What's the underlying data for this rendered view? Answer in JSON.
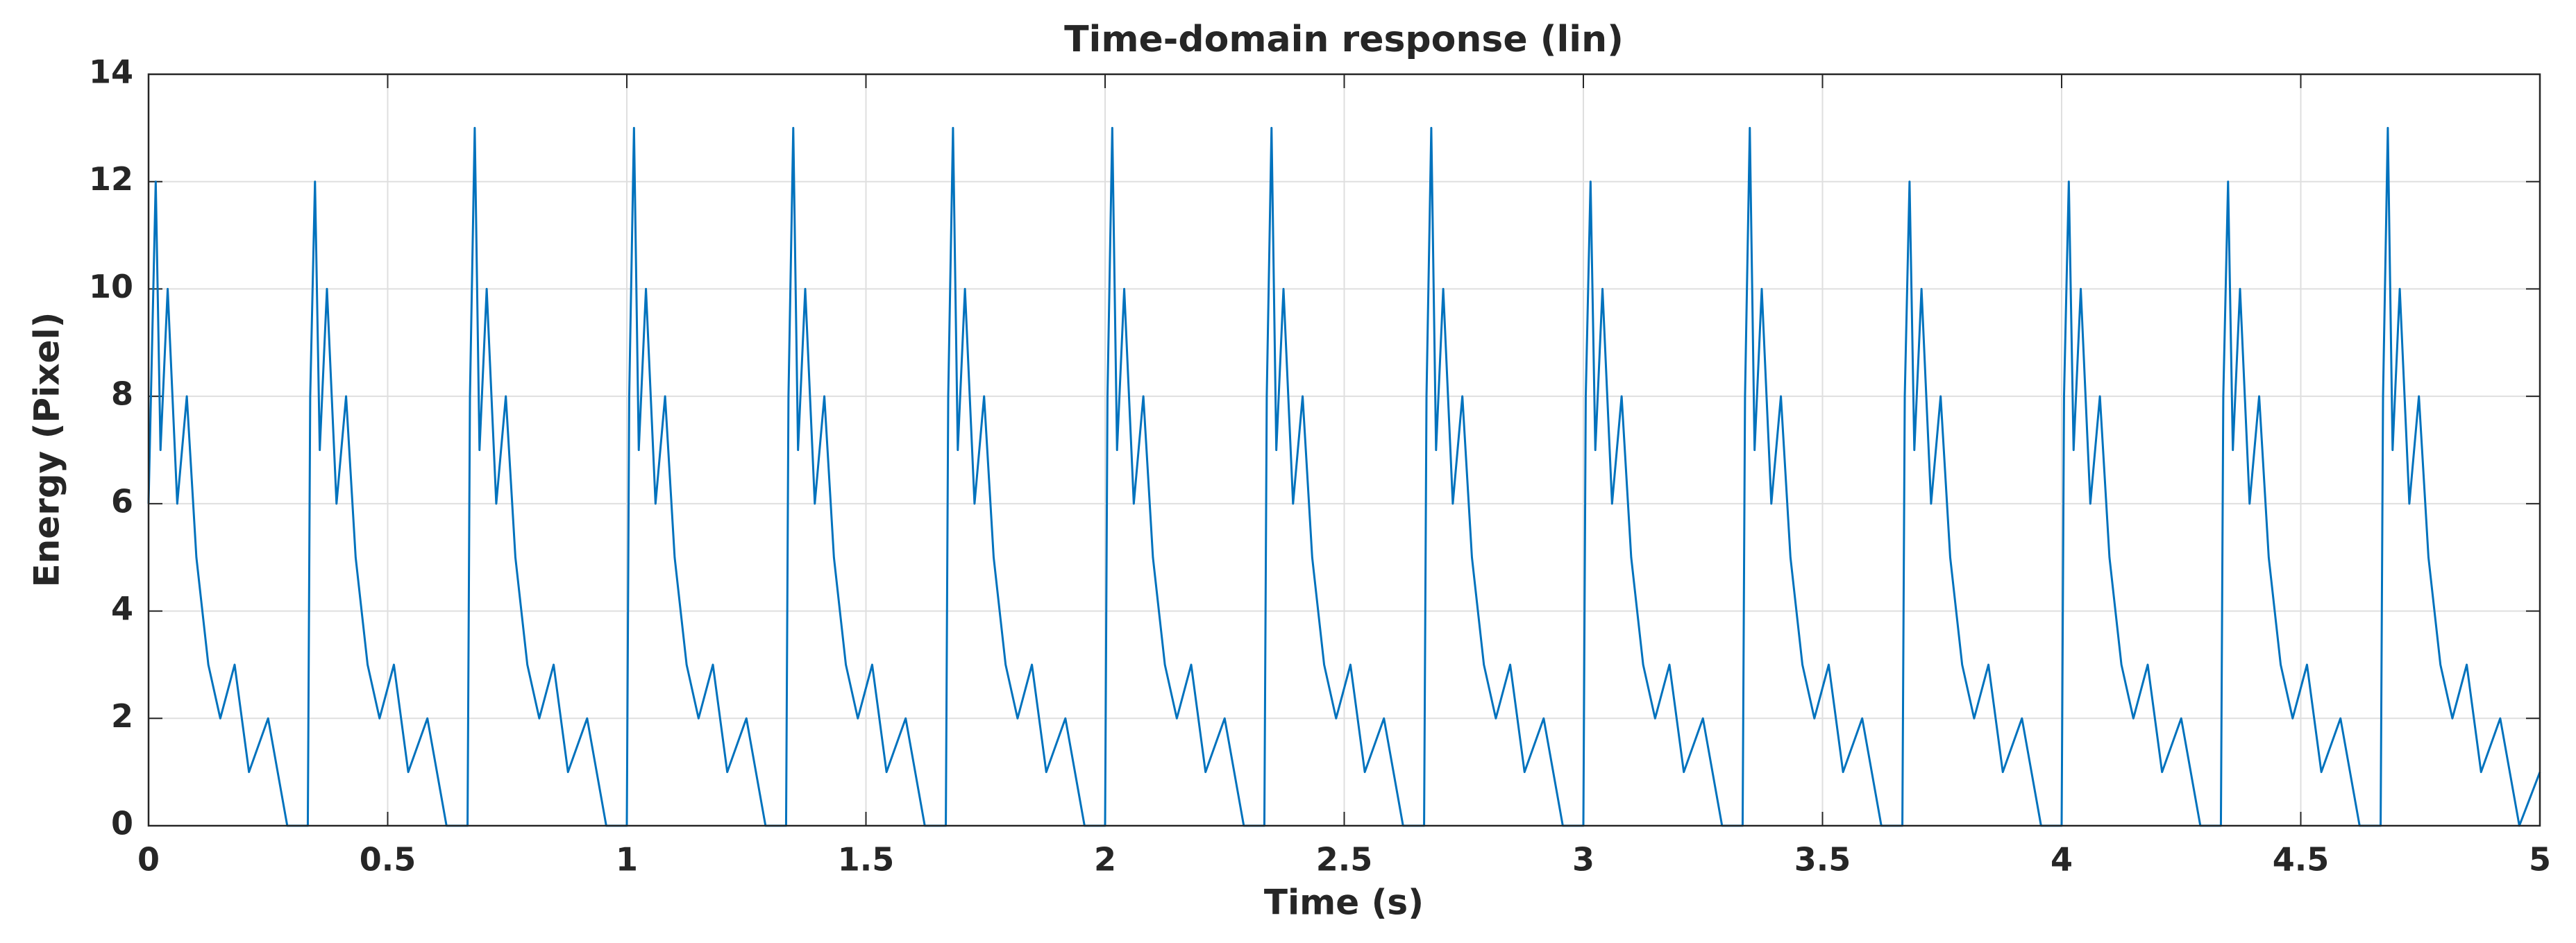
{
  "chart_data": {
    "type": "line",
    "title": "Time-domain response (lin)",
    "xlabel": "Time (s)",
    "ylabel": "Energy (Pixel)",
    "color": "#0072bd",
    "grid": true,
    "xlim": [
      0,
      5
    ],
    "ylim": [
      0,
      14
    ],
    "xticks": [
      0,
      0.5,
      1,
      1.5,
      2,
      2.5,
      3,
      3.5,
      4,
      4.5,
      5
    ],
    "yticks": [
      0,
      2,
      4,
      6,
      8,
      10,
      12,
      14
    ],
    "x": [
      0,
      0.005,
      0.015,
      0.025,
      0.04,
      0.06,
      0.08,
      0.1,
      0.125,
      0.15,
      0.18,
      0.21,
      0.25,
      0.29,
      0.333,
      0.338,
      0.348,
      0.358,
      0.373,
      0.393,
      0.413,
      0.433,
      0.458,
      0.483,
      0.513,
      0.543,
      0.583,
      0.623,
      0.667,
      0.672,
      0.682,
      0.692,
      0.707,
      0.727,
      0.747,
      0.767,
      0.792,
      0.817,
      0.847,
      0.877,
      0.917,
      0.957,
      1,
      1.005,
      1.015,
      1.025,
      1.04,
      1.06,
      1.08,
      1.1,
      1.125,
      1.15,
      1.18,
      1.21,
      1.25,
      1.29,
      1.333,
      1.338,
      1.348,
      1.358,
      1.373,
      1.393,
      1.413,
      1.433,
      1.458,
      1.483,
      1.513,
      1.543,
      1.583,
      1.623,
      1.667,
      1.672,
      1.682,
      1.692,
      1.707,
      1.727,
      1.747,
      1.767,
      1.792,
      1.817,
      1.847,
      1.877,
      1.917,
      1.957,
      2,
      2.005,
      2.015,
      2.025,
      2.04,
      2.06,
      2.08,
      2.1,
      2.125,
      2.15,
      2.18,
      2.21,
      2.25,
      2.29,
      2.333,
      2.338,
      2.348,
      2.358,
      2.373,
      2.393,
      2.413,
      2.433,
      2.458,
      2.483,
      2.513,
      2.543,
      2.583,
      2.623,
      2.667,
      2.672,
      2.682,
      2.692,
      2.707,
      2.727,
      2.747,
      2.767,
      2.792,
      2.817,
      2.847,
      2.877,
      2.917,
      2.957,
      3,
      3.005,
      3.015,
      3.025,
      3.04,
      3.06,
      3.08,
      3.1,
      3.125,
      3.15,
      3.18,
      3.21,
      3.25,
      3.29,
      3.333,
      3.338,
      3.348,
      3.358,
      3.373,
      3.393,
      3.413,
      3.433,
      3.458,
      3.483,
      3.513,
      3.543,
      3.583,
      3.623,
      3.667,
      3.672,
      3.682,
      3.692,
      3.707,
      3.727,
      3.747,
      3.767,
      3.792,
      3.817,
      3.847,
      3.877,
      3.917,
      3.957,
      4,
      4.005,
      4.015,
      4.025,
      4.04,
      4.06,
      4.08,
      4.1,
      4.125,
      4.15,
      4.18,
      4.21,
      4.25,
      4.29,
      4.333,
      4.338,
      4.348,
      4.358,
      4.373,
      4.393,
      4.413,
      4.433,
      4.458,
      4.483,
      4.513,
      4.543,
      4.583,
      4.623,
      4.667,
      4.672,
      4.682,
      4.692,
      4.707,
      4.727,
      4.747,
      4.767,
      4.792,
      4.817,
      4.847,
      4.877,
      4.917,
      4.957,
      5
    ],
    "values": [
      6,
      8,
      12,
      7,
      10,
      6,
      8,
      5,
      3,
      2,
      3,
      1,
      2,
      0,
      0,
      8,
      12,
      7,
      10,
      6,
      8,
      5,
      3,
      2,
      3,
      1,
      2,
      0,
      0,
      8,
      13,
      7,
      10,
      6,
      8,
      5,
      3,
      2,
      3,
      1,
      2,
      0,
      0,
      8,
      13,
      7,
      10,
      6,
      8,
      5,
      3,
      2,
      3,
      1,
      2,
      0,
      0,
      8,
      13,
      7,
      10,
      6,
      8,
      5,
      3,
      2,
      3,
      1,
      2,
      0,
      0,
      8,
      13,
      7,
      10,
      6,
      8,
      5,
      3,
      2,
      3,
      1,
      2,
      0,
      0,
      8,
      13,
      7,
      10,
      6,
      8,
      5,
      3,
      2,
      3,
      1,
      2,
      0,
      0,
      8,
      13,
      7,
      10,
      6,
      8,
      5,
      3,
      2,
      3,
      1,
      2,
      0,
      0,
      8,
      13,
      7,
      10,
      6,
      8,
      5,
      3,
      2,
      3,
      1,
      2,
      0,
      0,
      8,
      12,
      7,
      10,
      6,
      8,
      5,
      3,
      2,
      3,
      1,
      2,
      0,
      0,
      8,
      13,
      7,
      10,
      6,
      8,
      5,
      3,
      2,
      3,
      1,
      2,
      0,
      0,
      8,
      12,
      7,
      10,
      6,
      8,
      5,
      3,
      2,
      3,
      1,
      2,
      0,
      0,
      8,
      12,
      7,
      10,
      6,
      8,
      5,
      3,
      2,
      3,
      1,
      2,
      0,
      0,
      8,
      12,
      7,
      10,
      6,
      8,
      5,
      3,
      2,
      3,
      1,
      2,
      0,
      0,
      8,
      13,
      7,
      10,
      6,
      8,
      5,
      3,
      2,
      3,
      1,
      2,
      0,
      1
    ]
  }
}
